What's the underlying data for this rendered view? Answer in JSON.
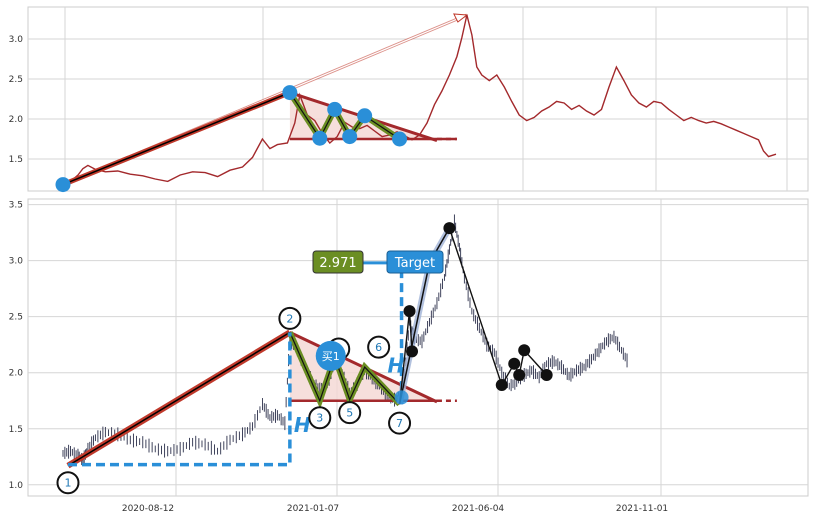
{
  "chart_data": [
    {
      "type": "line",
      "panel": "top",
      "ylim": [
        1.1,
        3.4
      ],
      "yticks": [
        "1.5",
        "2.0",
        "2.5",
        "3.0"
      ],
      "grid": true,
      "colors": {
        "price": "#a3292c",
        "pattern_line": "#c0392b",
        "pattern_fill": "#f4d7d3",
        "zigzag": "#6b8e23",
        "marker": "#2a8fd8"
      },
      "price_series": [
        [
          0,
          1.18
        ],
        [
          3,
          1.22
        ],
        [
          6,
          1.3
        ],
        [
          8,
          1.38
        ],
        [
          10,
          1.42
        ],
        [
          13,
          1.37
        ],
        [
          17,
          1.34
        ],
        [
          22,
          1.35
        ],
        [
          27,
          1.31
        ],
        [
          32,
          1.29
        ],
        [
          37,
          1.25
        ],
        [
          42,
          1.22
        ],
        [
          47,
          1.3
        ],
        [
          52,
          1.34
        ],
        [
          57,
          1.33
        ],
        [
          62,
          1.28
        ],
        [
          67,
          1.36
        ],
        [
          72,
          1.4
        ],
        [
          76,
          1.52
        ],
        [
          80,
          1.75
        ],
        [
          83,
          1.63
        ],
        [
          86,
          1.68
        ],
        [
          90,
          1.7
        ],
        [
          93,
          1.95
        ],
        [
          95,
          2.3
        ],
        [
          98,
          2.05
        ],
        [
          101,
          1.98
        ],
        [
          104,
          1.82
        ],
        [
          107,
          1.7
        ],
        [
          110,
          1.78
        ],
        [
          113,
          1.96
        ],
        [
          116,
          1.9
        ],
        [
          119,
          1.88
        ],
        [
          122,
          1.92
        ],
        [
          125,
          1.85
        ],
        [
          128,
          1.78
        ],
        [
          131,
          1.8
        ],
        [
          134,
          1.84
        ],
        [
          137,
          1.79
        ],
        [
          140,
          1.74
        ],
        [
          143,
          1.8
        ],
        [
          146,
          1.95
        ],
        [
          149,
          2.18
        ],
        [
          152,
          2.35
        ],
        [
          155,
          2.55
        ],
        [
          158,
          2.78
        ],
        [
          160,
          3.02
        ],
        [
          162,
          3.3
        ],
        [
          164,
          3.05
        ],
        [
          166,
          2.65
        ],
        [
          168,
          2.55
        ],
        [
          171,
          2.48
        ],
        [
          174,
          2.55
        ],
        [
          177,
          2.4
        ],
        [
          180,
          2.22
        ],
        [
          183,
          2.05
        ],
        [
          186,
          1.98
        ],
        [
          189,
          2.02
        ],
        [
          192,
          2.1
        ],
        [
          195,
          2.15
        ],
        [
          198,
          2.22
        ],
        [
          201,
          2.2
        ],
        [
          204,
          2.12
        ],
        [
          207,
          2.17
        ],
        [
          210,
          2.1
        ],
        [
          213,
          2.05
        ],
        [
          216,
          2.12
        ],
        [
          219,
          2.4
        ],
        [
          222,
          2.65
        ],
        [
          225,
          2.48
        ],
        [
          228,
          2.3
        ],
        [
          231,
          2.2
        ],
        [
          234,
          2.15
        ],
        [
          237,
          2.22
        ],
        [
          240,
          2.2
        ],
        [
          243,
          2.12
        ],
        [
          246,
          2.05
        ],
        [
          249,
          1.98
        ],
        [
          252,
          2.02
        ],
        [
          255,
          1.98
        ],
        [
          258,
          1.95
        ],
        [
          261,
          1.97
        ],
        [
          264,
          1.94
        ],
        [
          267,
          1.9
        ],
        [
          270,
          1.86
        ],
        [
          273,
          1.82
        ],
        [
          276,
          1.78
        ],
        [
          279,
          1.74
        ],
        [
          281,
          1.6
        ],
        [
          283,
          1.53
        ],
        [
          286,
          1.56
        ]
      ],
      "pattern_points": [
        [
          0,
          1.18
        ],
        [
          91,
          2.33
        ],
        [
          103,
          1.76
        ],
        [
          109,
          2.12
        ],
        [
          115,
          1.78
        ],
        [
          121,
          2.04
        ],
        [
          135,
          1.75
        ]
      ],
      "resistance_line": [
        [
          91,
          2.33
        ],
        [
          150,
          1.73
        ]
      ],
      "support_line": [
        [
          91,
          1.75
        ],
        [
          158,
          1.75
        ]
      ],
      "support_dash": [
        [
          150,
          1.75
        ],
        [
          158,
          1.75
        ]
      ],
      "projection_arrow": [
        [
          0,
          1.18
        ],
        [
          162,
          3.3
        ]
      ]
    },
    {
      "type": "line",
      "panel": "bottom",
      "ylim": [
        0.9,
        3.55
      ],
      "yticks": [
        "1.0",
        "1.5",
        "2.0",
        "2.5",
        "3.0",
        "3.5"
      ],
      "xticks": [
        "2020-08-12",
        "2021-01-07",
        "2021-06-04",
        "2021-11-01"
      ],
      "grid": true,
      "colors": {
        "candle": "#2b2f4a",
        "pattern_line": "#c0392b",
        "zigzag": "#6b8e23",
        "marker": "#2a8fd8",
        "target_box": "#2a8fd8",
        "value_box": "#6b8e23",
        "swing": "#111111"
      },
      "price_series": [
        [
          0,
          1.28
        ],
        [
          3,
          1.3
        ],
        [
          6,
          1.26
        ],
        [
          8,
          1.22
        ],
        [
          10,
          1.32
        ],
        [
          13,
          1.42
        ],
        [
          17,
          1.47
        ],
        [
          22,
          1.45
        ],
        [
          27,
          1.4
        ],
        [
          32,
          1.38
        ],
        [
          37,
          1.32
        ],
        [
          42,
          1.3
        ],
        [
          47,
          1.32
        ],
        [
          52,
          1.38
        ],
        [
          57,
          1.36
        ],
        [
          62,
          1.3
        ],
        [
          67,
          1.4
        ],
        [
          72,
          1.45
        ],
        [
          76,
          1.52
        ],
        [
          80,
          1.72
        ],
        [
          83,
          1.6
        ],
        [
          86,
          1.62
        ],
        [
          89,
          1.55
        ],
        [
          91,
          2.3
        ],
        [
          94,
          2.2
        ],
        [
          97,
          2.05
        ],
        [
          100,
          1.92
        ],
        [
          103,
          1.85
        ],
        [
          106,
          1.9
        ],
        [
          109,
          2.08
        ],
        [
          112,
          2.0
        ],
        [
          115,
          1.82
        ],
        [
          118,
          1.9
        ],
        [
          121,
          2.02
        ],
        [
          124,
          1.95
        ],
        [
          127,
          1.88
        ],
        [
          130,
          1.8
        ],
        [
          133,
          1.76
        ],
        [
          135,
          1.78
        ],
        [
          137,
          1.98
        ],
        [
          139,
          2.45
        ],
        [
          141,
          2.3
        ],
        [
          144,
          2.28
        ],
        [
          147,
          2.45
        ],
        [
          150,
          2.62
        ],
        [
          153,
          2.85
        ],
        [
          155,
          3.1
        ],
        [
          157,
          3.35
        ],
        [
          159,
          3.12
        ],
        [
          161,
          2.85
        ],
        [
          164,
          2.55
        ],
        [
          167,
          2.4
        ],
        [
          170,
          2.25
        ],
        [
          173,
          2.18
        ],
        [
          176,
          2.0
        ],
        [
          179,
          1.88
        ],
        [
          182,
          1.92
        ],
        [
          185,
          1.98
        ],
        [
          188,
          2.02
        ],
        [
          191,
          1.96
        ],
        [
          194,
          2.08
        ],
        [
          197,
          2.1
        ],
        [
          200,
          2.05
        ],
        [
          203,
          1.97
        ],
        [
          206,
          2.02
        ],
        [
          209,
          2.05
        ],
        [
          212,
          2.12
        ],
        [
          215,
          2.2
        ],
        [
          218,
          2.28
        ],
        [
          221,
          2.32
        ],
        [
          224,
          2.2
        ],
        [
          227,
          2.08
        ]
      ],
      "pattern_points": [
        [
          2,
          1.17
        ],
        [
          91,
          2.36
        ],
        [
          103,
          1.75
        ],
        [
          109,
          2.14
        ],
        [
          115,
          1.76
        ],
        [
          121,
          2.05
        ],
        [
          135,
          1.72
        ]
      ],
      "resistance_line": [
        [
          91,
          2.36
        ],
        [
          150,
          1.74
        ]
      ],
      "support_line": [
        [
          91,
          1.75
        ],
        [
          150,
          1.75
        ]
      ],
      "support_dash": [
        [
          150,
          1.75
        ],
        [
          158,
          1.75
        ]
      ],
      "measure_h_left": {
        "x": [
          2,
          91
        ],
        "y": [
          1.18,
          2.36
        ]
      },
      "measure_h_right": {
        "x": 135,
        "y": [
          1.72,
          3.0
        ]
      },
      "target_arrow": [
        [
          119,
          2.98
        ],
        [
          147,
          2.98
        ]
      ],
      "breakout_leg": [
        [
          135,
          1.72
        ],
        [
          147,
          2.98
        ],
        [
          155,
          3.29
        ]
      ],
      "swing_points": [
        [
          139,
          2.55
        ],
        [
          140,
          2.19
        ],
        [
          155,
          3.29
        ],
        [
          176,
          1.89
        ],
        [
          181,
          2.08
        ],
        [
          183,
          1.98
        ],
        [
          185,
          2.2
        ],
        [
          194,
          1.98
        ]
      ],
      "point_labels": [
        "1",
        "2",
        "3",
        "5",
        "6",
        "7"
      ],
      "buy_label": "买1",
      "target_label": "Target",
      "value_label": "2.971",
      "h_label": "H"
    }
  ]
}
